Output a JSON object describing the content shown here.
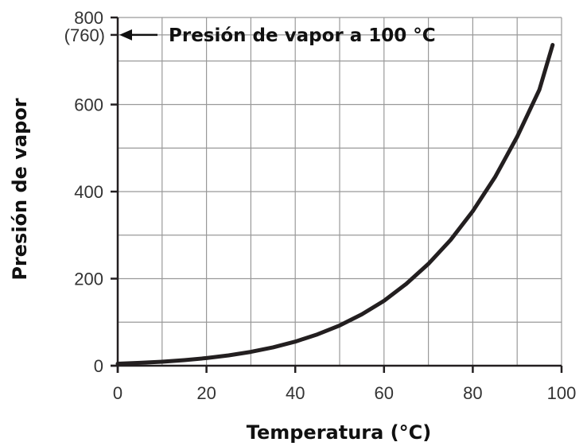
{
  "chart_data": {
    "type": "line",
    "xlabel": "Temperatura (°C)",
    "ylabel": "Presión de vapor",
    "xlim": [
      0,
      100
    ],
    "ylim": [
      0,
      800
    ],
    "x_ticks": [
      "0",
      "20",
      "40",
      "60",
      "80",
      "100"
    ],
    "y_ticks": [
      "0",
      "200",
      "400",
      "600",
      "800"
    ],
    "y_extra_tick": {
      "value": 760,
      "label": "(760)"
    },
    "grid": true,
    "annotation": {
      "text": "Presión de vapor a 100 °C",
      "at_y": 760
    },
    "series": [
      {
        "x": [
          0,
          5,
          10,
          15,
          20,
          25,
          30,
          35,
          40,
          45,
          50,
          55,
          60,
          65,
          70,
          75,
          80,
          85,
          90,
          95,
          98
        ],
        "y": [
          4.6,
          6.5,
          9.2,
          12.8,
          17.5,
          23.8,
          31.8,
          42.2,
          55.3,
          71.9,
          92.5,
          118,
          149,
          188,
          234,
          289,
          355,
          433,
          526,
          634,
          737
        ]
      }
    ],
    "colors": {
      "line": "#231f20",
      "grid": "#999999",
      "axis": "#231f20"
    }
  }
}
